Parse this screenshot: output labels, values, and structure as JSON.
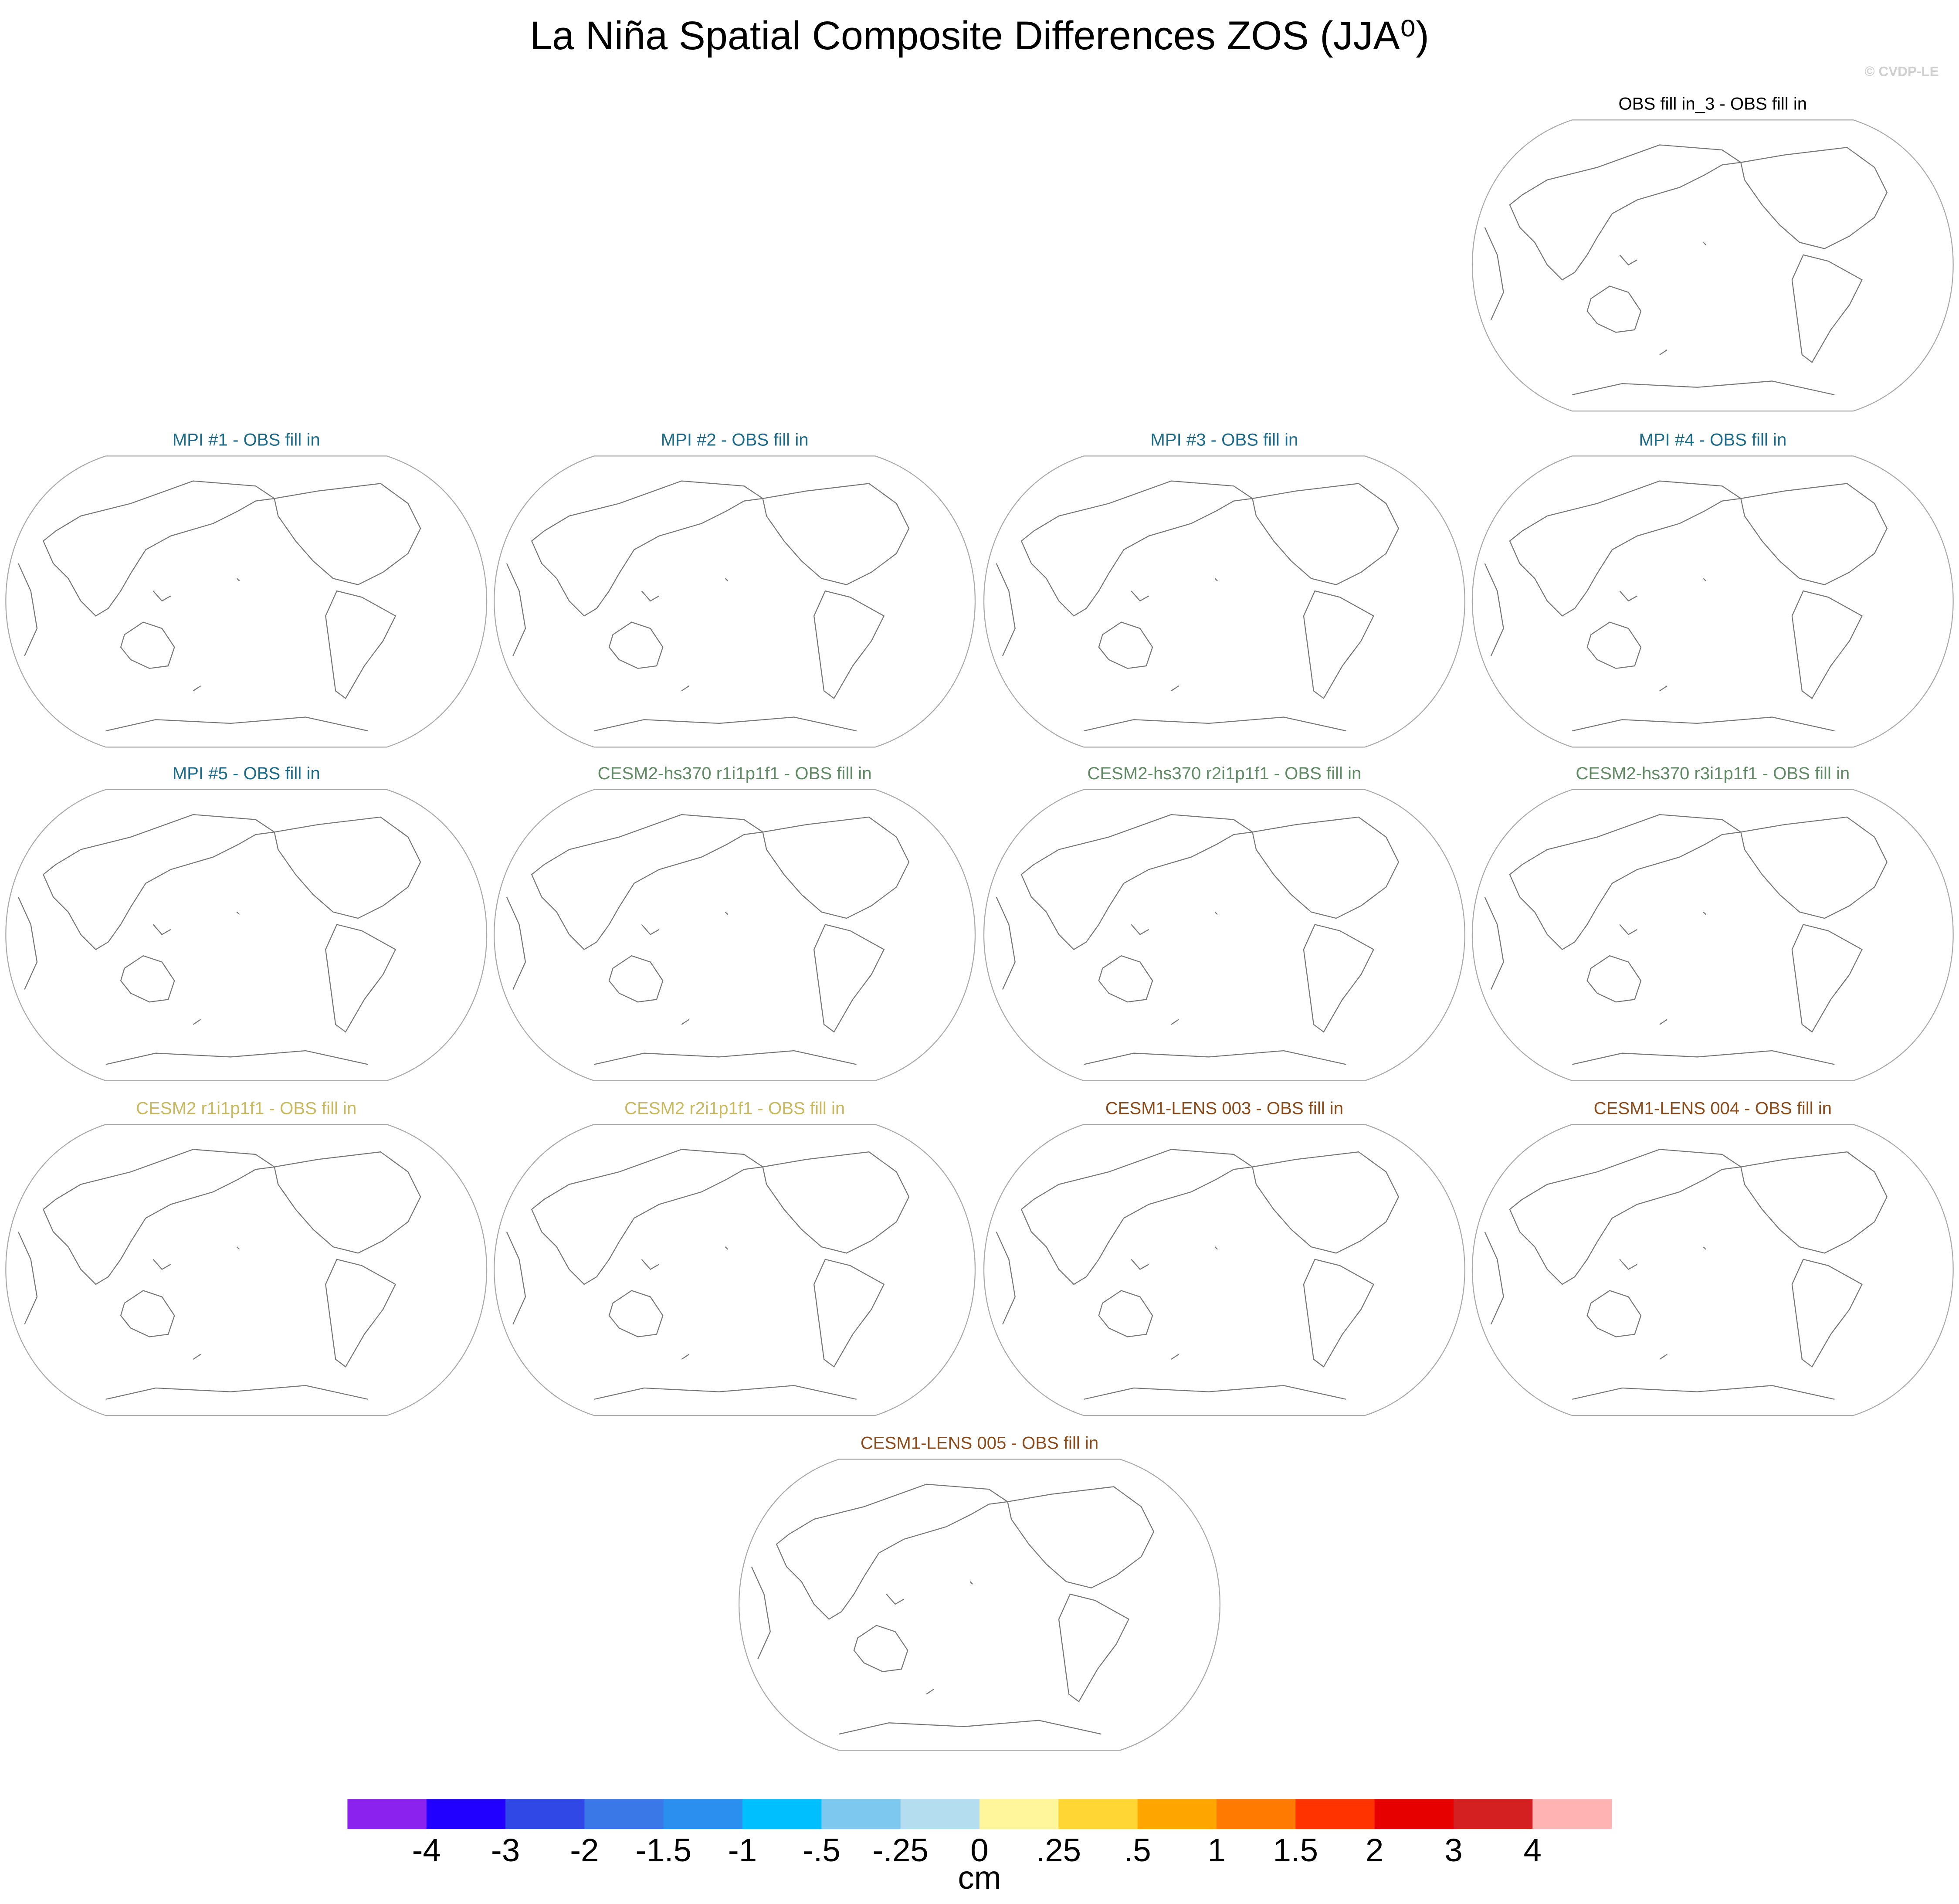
{
  "title": "La Niña Spatial Composite Differences ZOS (JJA⁰)",
  "watermark": "© CVDP-LE",
  "panels": [
    {
      "title": "OBS fill in_3 - OBS fill in",
      "color": "#000000"
    },
    {
      "title": "MPI #1 - OBS fill in",
      "color": "#1b6a8a"
    },
    {
      "title": "MPI #2 - OBS fill in",
      "color": "#1b6a8a"
    },
    {
      "title": "MPI #3 - OBS fill in",
      "color": "#1b6a8a"
    },
    {
      "title": "MPI #4 - OBS fill in",
      "color": "#1b6a8a"
    },
    {
      "title": "MPI #5 - OBS fill in",
      "color": "#1b6a8a"
    },
    {
      "title": "CESM2-hs370 r1i1p1f1 - OBS fill in",
      "color": "#5f8a63"
    },
    {
      "title": "CESM2-hs370 r2i1p1f1 - OBS fill in",
      "color": "#5f8a63"
    },
    {
      "title": "CESM2-hs370 r3i1p1f1 - OBS fill in",
      "color": "#5f8a63"
    },
    {
      "title": "CESM2 r1i1p1f1 - OBS fill in",
      "color": "#c9b85e"
    },
    {
      "title": "CESM2 r2i1p1f1 - OBS fill in",
      "color": "#c9b85e"
    },
    {
      "title": "CESM1-LENS 003 - OBS fill in",
      "color": "#8a4a1a"
    },
    {
      "title": "CESM1-LENS 004 - OBS fill in",
      "color": "#8a4a1a"
    },
    {
      "title": "CESM1-LENS 005 - OBS fill in",
      "color": "#8a4a1a"
    }
  ],
  "colorbar": {
    "colors": [
      "#8b22ee",
      "#2200ff",
      "#3048e6",
      "#3a78e8",
      "#2b8ff0",
      "#00bfff",
      "#7cc8ee",
      "#b4ddf0",
      "#fff59a",
      "#ffd633",
      "#ffa500",
      "#ff7a00",
      "#ff3300",
      "#e60000",
      "#d42020",
      "#ffb3b3"
    ],
    "labels": [
      "-4",
      "-3",
      "-2",
      "-1.5",
      "-1",
      "-.5",
      "-.25",
      "0",
      ".25",
      ".5",
      "1",
      "1.5",
      "2",
      "3",
      "4"
    ],
    "unit": "cm"
  }
}
